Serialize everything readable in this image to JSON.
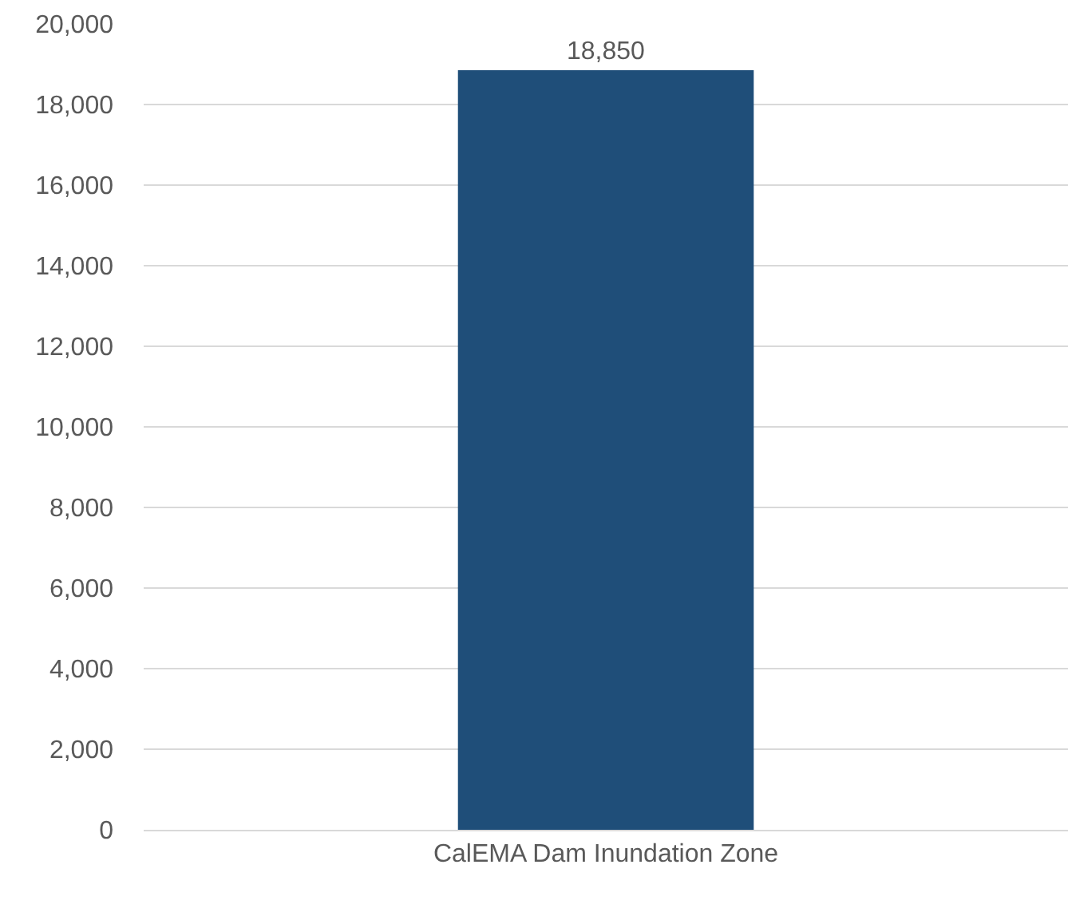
{
  "chart_data": {
    "type": "bar",
    "categories": [
      "CalEMA Dam Inundation Zone"
    ],
    "values": [
      18850
    ],
    "color": "#1f4e79",
    "data_labels": true,
    "ylim": [
      0,
      20000
    ],
    "yticks": [
      {
        "value": 0,
        "label": "0"
      },
      {
        "value": 2000,
        "label": "2,000"
      },
      {
        "value": 4000,
        "label": "4,000"
      },
      {
        "value": 6000,
        "label": "6,000"
      },
      {
        "value": 8000,
        "label": "8,000"
      },
      {
        "value": 10000,
        "label": "10,000"
      },
      {
        "value": 12000,
        "label": "12,000"
      },
      {
        "value": 14000,
        "label": "14,000"
      },
      {
        "value": 16000,
        "label": "16,000"
      },
      {
        "value": 18000,
        "label": "18,000"
      },
      {
        "value": 20000,
        "label": "20,000"
      }
    ],
    "value_labels": [
      "18,850"
    ],
    "grid": "y",
    "legend": false
  }
}
